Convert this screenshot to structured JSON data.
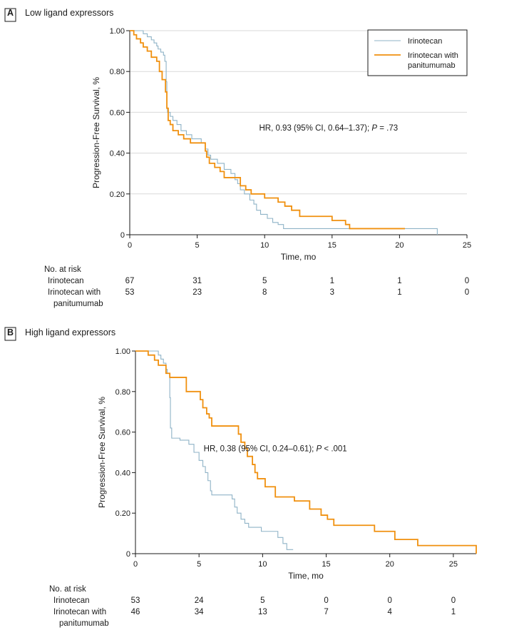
{
  "chart_data": [
    {
      "type": "line",
      "panel_letter": "A",
      "title": "Low ligand expressors",
      "xlabel": "Time, mo",
      "ylabel": "Progression-Free Survival, %",
      "xlim": [
        0,
        25
      ],
      "ylim": [
        0,
        1
      ],
      "xticks": [
        0,
        5,
        10,
        15,
        20,
        25
      ],
      "xtick_labels": [
        "0",
        "5",
        "10",
        "15",
        "20",
        "25"
      ],
      "yticks": [
        0,
        0.2,
        0.4,
        0.6,
        0.8,
        1.0
      ],
      "ytick_labels": [
        "0",
        "0.20",
        "0.40",
        "0.60",
        "0.80",
        "1.00"
      ],
      "grid": "horizontal",
      "legend": {
        "placement": "top-right",
        "entries": [
          {
            "line1": "Irinotecan",
            "line2": "",
            "color": "#8fb3c7"
          },
          {
            "line1": "Irinotecan with",
            "line2": "panitumumab",
            "color": "#f0900f"
          }
        ]
      },
      "annotation": {
        "before": "HR, 0.93 (95% CI, 0.64–1.37); ",
        "p_label": "P",
        "after": " = .73",
        "x": 15,
        "y": 0.51
      },
      "series": [
        {
          "name": "Irinotecan",
          "color": "#8fb3c7",
          "steps": [
            [
              0,
              1.0
            ],
            [
              1.0,
              0.985
            ],
            [
              1.3,
              0.97
            ],
            [
              1.6,
              0.955
            ],
            [
              1.8,
              0.94
            ],
            [
              2.0,
              0.925
            ],
            [
              2.1,
              0.91
            ],
            [
              2.3,
              0.895
            ],
            [
              2.5,
              0.88
            ],
            [
              2.6,
              0.85
            ],
            [
              2.7,
              0.75
            ],
            [
              2.75,
              0.62
            ],
            [
              2.8,
              0.6
            ],
            [
              3.0,
              0.58
            ],
            [
              3.2,
              0.56
            ],
            [
              3.5,
              0.54
            ],
            [
              3.8,
              0.51
            ],
            [
              4.2,
              0.49
            ],
            [
              4.6,
              0.47
            ],
            [
              5.3,
              0.45
            ],
            [
              5.6,
              0.42
            ],
            [
              5.8,
              0.39
            ],
            [
              6.0,
              0.37
            ],
            [
              6.5,
              0.35
            ],
            [
              7.0,
              0.32
            ],
            [
              7.5,
              0.3
            ],
            [
              7.8,
              0.27
            ],
            [
              8.0,
              0.25
            ],
            [
              8.2,
              0.22
            ],
            [
              8.5,
              0.2
            ],
            [
              8.9,
              0.17
            ],
            [
              9.2,
              0.15
            ],
            [
              9.4,
              0.12
            ],
            [
              9.7,
              0.1
            ],
            [
              10.2,
              0.08
            ],
            [
              10.6,
              0.06
            ],
            [
              11.0,
              0.05
            ],
            [
              11.4,
              0.03
            ],
            [
              22.8,
              0.03
            ]
          ],
          "end": 22.8,
          "drop_to_zero": true
        },
        {
          "name": "Irinotecan with panitumumab",
          "color": "#f0900f",
          "steps": [
            [
              0,
              1.0
            ],
            [
              0.3,
              0.98
            ],
            [
              0.5,
              0.96
            ],
            [
              0.8,
              0.94
            ],
            [
              1.0,
              0.92
            ],
            [
              1.3,
              0.9
            ],
            [
              1.6,
              0.87
            ],
            [
              2.0,
              0.85
            ],
            [
              2.2,
              0.8
            ],
            [
              2.4,
              0.76
            ],
            [
              2.65,
              0.7
            ],
            [
              2.75,
              0.62
            ],
            [
              2.85,
              0.56
            ],
            [
              3.0,
              0.54
            ],
            [
              3.2,
              0.51
            ],
            [
              3.6,
              0.49
            ],
            [
              4.0,
              0.47
            ],
            [
              4.5,
              0.45
            ],
            [
              5.5,
              0.45
            ],
            [
              5.6,
              0.41
            ],
            [
              5.7,
              0.38
            ],
            [
              5.9,
              0.35
            ],
            [
              6.3,
              0.33
            ],
            [
              6.7,
              0.31
            ],
            [
              7.0,
              0.28
            ],
            [
              8.2,
              0.24
            ],
            [
              8.6,
              0.22
            ],
            [
              9.0,
              0.2
            ],
            [
              10.0,
              0.18
            ],
            [
              11.0,
              0.16
            ],
            [
              11.5,
              0.14
            ],
            [
              12.0,
              0.12
            ],
            [
              12.6,
              0.09
            ],
            [
              15.0,
              0.07
            ],
            [
              16.0,
              0.05
            ],
            [
              16.3,
              0.03
            ],
            [
              20.4,
              0.03
            ]
          ],
          "end": 20.4,
          "drop_to_zero": false
        }
      ],
      "risk_table": {
        "header": "No. at risk",
        "times": [
          0,
          5,
          10,
          15,
          20,
          25
        ],
        "rows": [
          {
            "line1": "Irinotecan",
            "line2": "",
            "values": [
              "67",
              "31",
              "5",
              "1",
              "1",
              "0"
            ]
          },
          {
            "line1": "Irinotecan with",
            "line2": "panitumumab",
            "values": [
              "53",
              "23",
              "8",
              "3",
              "1",
              "0"
            ]
          }
        ]
      }
    },
    {
      "type": "line",
      "panel_letter": "B",
      "title": "High ligand expressors",
      "xlabel": "Time, mo",
      "ylabel": "Progression-Free Survival, %",
      "xlim": [
        0,
        26.8
      ],
      "ylim": [
        0,
        1
      ],
      "xticks": [
        0,
        5,
        10,
        15,
        20,
        25
      ],
      "xtick_labels": [
        "0",
        "5",
        "10",
        "15",
        "20",
        "25"
      ],
      "yticks": [
        0,
        0.2,
        0.4,
        0.6,
        0.8,
        1.0
      ],
      "ytick_labels": [
        "0",
        "0.20",
        "0.40",
        "0.60",
        "0.80",
        "1.00"
      ],
      "grid": "none",
      "annotation": {
        "before": "HR, 0.38 (95% CI, 0.24–0.61); ",
        "p_label": "P",
        "after": " < .001",
        "x": 11,
        "y": 0.505
      },
      "series": [
        {
          "name": "Irinotecan",
          "color": "#8fb3c7",
          "steps": [
            [
              0,
              1.0
            ],
            [
              1.8,
              0.98
            ],
            [
              2.0,
              0.96
            ],
            [
              2.2,
              0.94
            ],
            [
              2.4,
              0.91
            ],
            [
              2.5,
              0.89
            ],
            [
              2.7,
              0.77
            ],
            [
              2.75,
              0.62
            ],
            [
              2.85,
              0.57
            ],
            [
              3.5,
              0.56
            ],
            [
              4.2,
              0.54
            ],
            [
              4.6,
              0.5
            ],
            [
              5.0,
              0.46
            ],
            [
              5.3,
              0.43
            ],
            [
              5.5,
              0.4
            ],
            [
              5.7,
              0.36
            ],
            [
              5.9,
              0.31
            ],
            [
              6.0,
              0.29
            ],
            [
              7.6,
              0.27
            ],
            [
              7.8,
              0.23
            ],
            [
              8.0,
              0.2
            ],
            [
              8.3,
              0.17
            ],
            [
              8.6,
              0.15
            ],
            [
              8.9,
              0.13
            ],
            [
              9.9,
              0.11
            ],
            [
              11.2,
              0.08
            ],
            [
              11.6,
              0.05
            ],
            [
              11.9,
              0.02
            ],
            [
              12.4,
              0.02
            ]
          ],
          "end": 12.4,
          "drop_to_zero": false
        },
        {
          "name": "Irinotecan with panitumumab",
          "color": "#f0900f",
          "steps": [
            [
              0,
              1.0
            ],
            [
              1.0,
              0.98
            ],
            [
              1.5,
              0.955
            ],
            [
              1.8,
              0.93
            ],
            [
              2.4,
              0.89
            ],
            [
              2.7,
              0.87
            ],
            [
              4.0,
              0.8
            ],
            [
              5.1,
              0.76
            ],
            [
              5.3,
              0.72
            ],
            [
              5.6,
              0.69
            ],
            [
              5.8,
              0.67
            ],
            [
              6.0,
              0.63
            ],
            [
              8.1,
              0.59
            ],
            [
              8.3,
              0.55
            ],
            [
              8.6,
              0.52
            ],
            [
              8.8,
              0.48
            ],
            [
              9.2,
              0.44
            ],
            [
              9.4,
              0.4
            ],
            [
              9.6,
              0.37
            ],
            [
              10.2,
              0.33
            ],
            [
              11.0,
              0.28
            ],
            [
              12.5,
              0.26
            ],
            [
              13.7,
              0.22
            ],
            [
              14.6,
              0.19
            ],
            [
              15.1,
              0.17
            ],
            [
              15.6,
              0.14
            ],
            [
              18.8,
              0.11
            ],
            [
              20.4,
              0.07
            ],
            [
              22.2,
              0.04
            ],
            [
              26.8,
              0.04
            ]
          ],
          "end": 26.8,
          "drop_to_zero": true
        }
      ],
      "risk_table": {
        "header": "No. at risk",
        "times": [
          0,
          5,
          10,
          15,
          20,
          25
        ],
        "rows": [
          {
            "line1": "Irinotecan",
            "line2": "",
            "values": [
              "53",
              "24",
              "5",
              "0",
              "0",
              "0"
            ]
          },
          {
            "line1": "Irinotecan with",
            "line2": "panitumumab",
            "values": [
              "46",
              "34",
              "13",
              "7",
              "4",
              "1"
            ]
          }
        ]
      }
    }
  ]
}
